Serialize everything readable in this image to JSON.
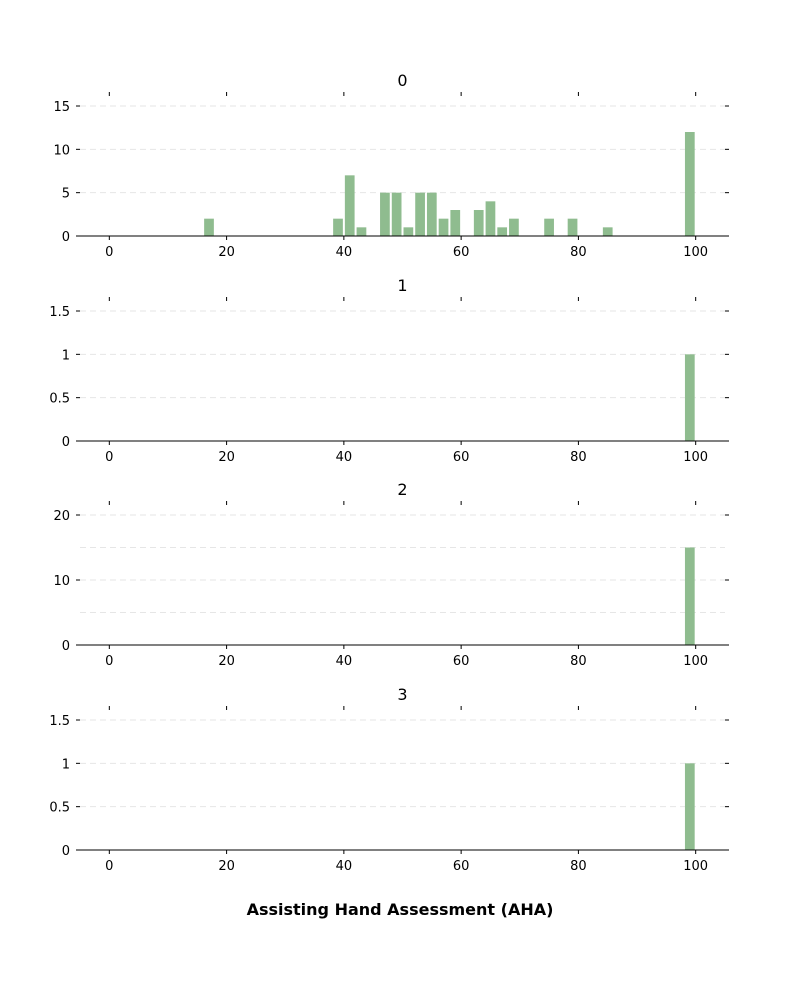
{
  "chart_data": {
    "type": "bar",
    "xlabel": "Assisting Hand Assessment (AHA)",
    "bar_color": "#8fbc8f",
    "grid": "dashed horizontal, light gray",
    "panels": [
      {
        "title": "0",
        "xlim": [
          -5,
          105
        ],
        "ylim": [
          0,
          15
        ],
        "xticks": [
          0,
          20,
          40,
          60,
          80,
          100
        ],
        "xtick_labels": [
          "0",
          "20",
          "40",
          "60",
          "80",
          "100"
        ],
        "yticks": [
          0,
          5,
          10,
          15
        ],
        "ytick_labels": [
          "0",
          "5",
          "10",
          "15"
        ],
        "bin_width": 2,
        "bins": [
          {
            "x": 17,
            "count": 2
          },
          {
            "x": 39,
            "count": 2
          },
          {
            "x": 41,
            "count": 7
          },
          {
            "x": 43,
            "count": 1
          },
          {
            "x": 47,
            "count": 5
          },
          {
            "x": 49,
            "count": 5
          },
          {
            "x": 51,
            "count": 1
          },
          {
            "x": 53,
            "count": 5
          },
          {
            "x": 55,
            "count": 5
          },
          {
            "x": 57,
            "count": 2
          },
          {
            "x": 59,
            "count": 3
          },
          {
            "x": 63,
            "count": 3
          },
          {
            "x": 65,
            "count": 4
          },
          {
            "x": 67,
            "count": 1
          },
          {
            "x": 69,
            "count": 2
          },
          {
            "x": 75,
            "count": 2
          },
          {
            "x": 79,
            "count": 2
          },
          {
            "x": 85,
            "count": 1
          },
          {
            "x": 99,
            "count": 12
          }
        ]
      },
      {
        "title": "1",
        "xlim": [
          -5,
          105
        ],
        "ylim": [
          0,
          1.5
        ],
        "xticks": [
          0,
          20,
          40,
          60,
          80,
          100
        ],
        "xtick_labels": [
          "0",
          "20",
          "40",
          "60",
          "80",
          "100"
        ],
        "yticks": [
          0,
          0.5,
          1,
          1.5
        ],
        "ytick_labels": [
          "0",
          "0.5",
          "1",
          "1.5"
        ],
        "bin_width": 2,
        "bins": [
          {
            "x": 99,
            "count": 1
          }
        ]
      },
      {
        "title": "2",
        "xlim": [
          -5,
          105
        ],
        "ylim": [
          0,
          20
        ],
        "xticks": [
          0,
          20,
          40,
          60,
          80,
          100
        ],
        "xtick_labels": [
          "0",
          "20",
          "40",
          "60",
          "80",
          "100"
        ],
        "yticks": [
          0,
          10,
          20
        ],
        "ytick_labels": [
          "0",
          "10",
          "20"
        ],
        "grid_values": [
          5,
          10,
          15,
          20
        ],
        "bin_width": 2,
        "bins": [
          {
            "x": 99,
            "count": 15
          }
        ]
      },
      {
        "title": "3",
        "xlim": [
          -5,
          105
        ],
        "ylim": [
          0,
          1.5
        ],
        "xticks": [
          0,
          20,
          40,
          60,
          80,
          100
        ],
        "xtick_labels": [
          "0",
          "20",
          "40",
          "60",
          "80",
          "100"
        ],
        "yticks": [
          0,
          0.5,
          1,
          1.5
        ],
        "ytick_labels": [
          "0",
          "0.5",
          "1",
          "1.5"
        ],
        "bin_width": 2,
        "bins": [
          {
            "x": 99,
            "count": 1
          }
        ]
      }
    ]
  }
}
